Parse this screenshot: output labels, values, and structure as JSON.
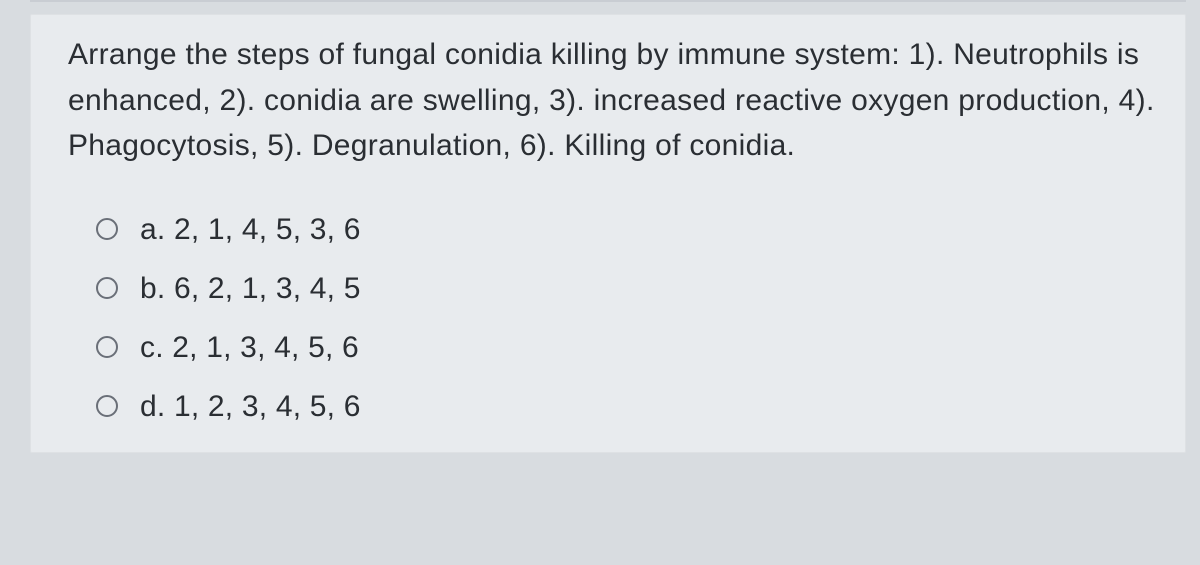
{
  "question": {
    "text": "Arrange the steps of fungal conidia killing by immune system: 1). Neutrophils is enhanced, 2). conidia are swelling, 3). increased reactive oxygen production, 4). Phagocytosis, 5). Degranulation, 6). Killing of conidia."
  },
  "options": [
    {
      "id": "a",
      "label": "a. 2, 1, 4, 5, 3, 6"
    },
    {
      "id": "b",
      "label": "b. 6, 2, 1, 3, 4, 5"
    },
    {
      "id": "c",
      "label": "c. 2, 1, 3, 4, 5, 6"
    },
    {
      "id": "d",
      "label": "d. 1, 2, 3, 4, 5, 6"
    }
  ],
  "colors": {
    "page_bg": "#d8dce0",
    "card_bg": "#e8ebee",
    "text": "#2a2e33",
    "radio_border": "#6a6f78"
  }
}
